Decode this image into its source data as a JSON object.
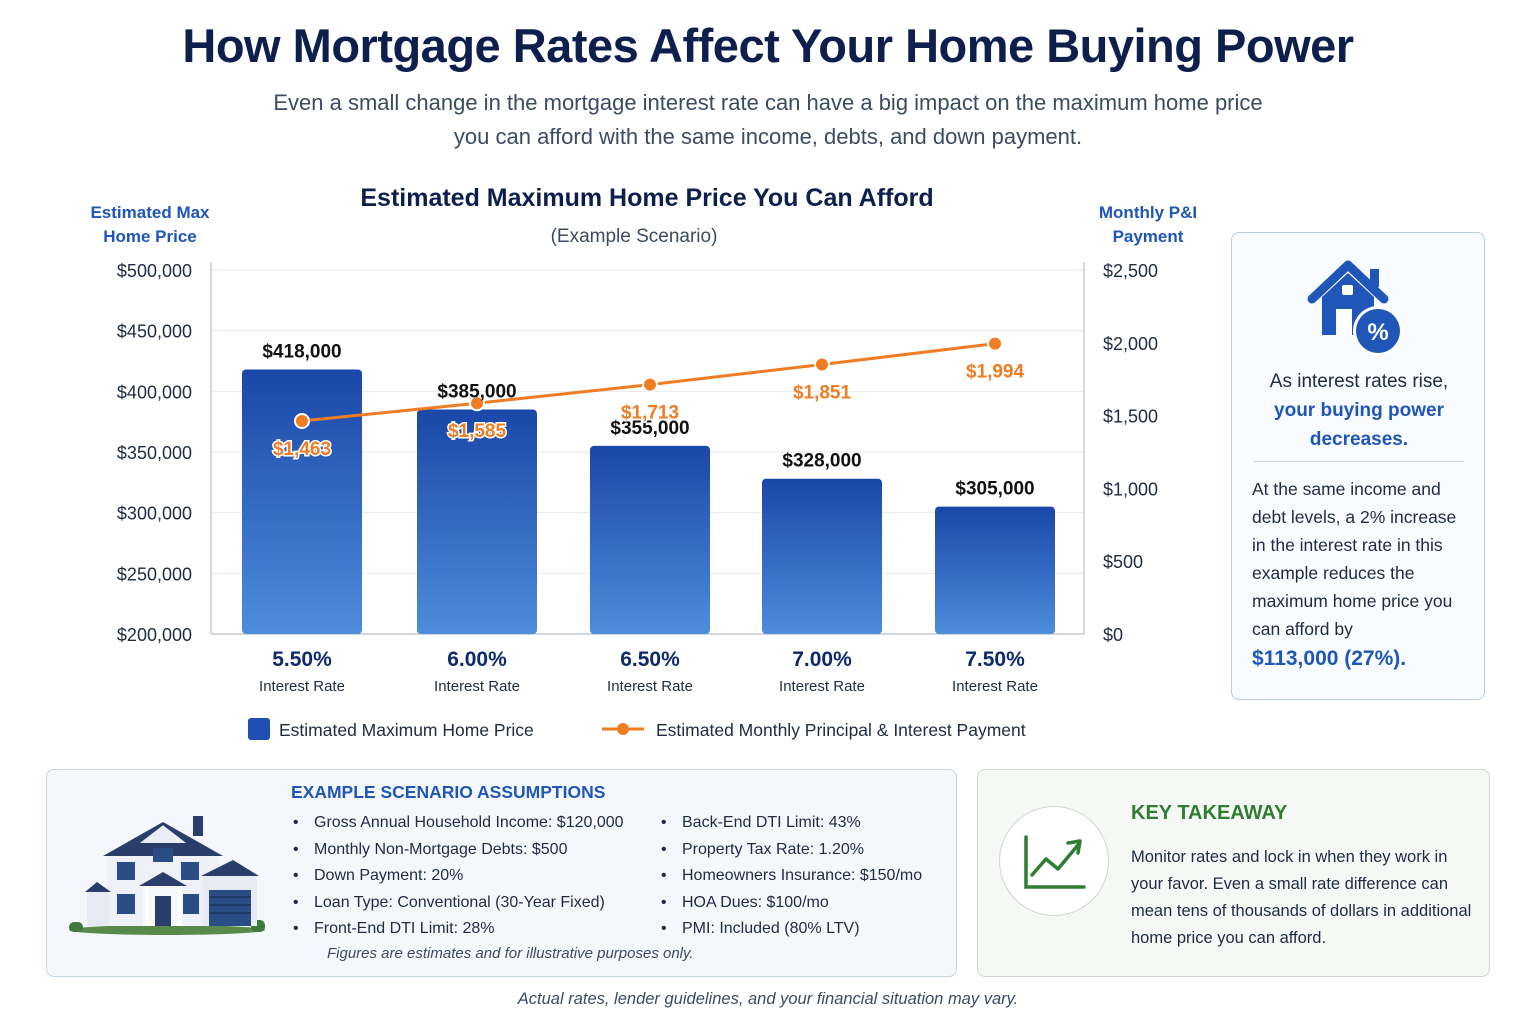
{
  "header": {
    "title": "How Mortgage Rates Affect Your Home Buying Power",
    "subtitle_line1": "Even a small change in the mortgage interest rate can have a big impact on the maximum home price",
    "subtitle_line2": "you can afford with the same income, debts, and down payment."
  },
  "chart_data": {
    "type": "bar",
    "title": "Estimated Maximum Home Price You Can Afford",
    "subtitle": "(Example Scenario)",
    "ylabel_left": [
      "Estimated Max",
      "Home Price"
    ],
    "ylabel_right": [
      "Monthly P&I",
      "Payment"
    ],
    "categories": [
      "5.50%",
      "6.00%",
      "6.50%",
      "7.00%",
      "7.50%"
    ],
    "category_sublabel": "Interest Rate",
    "ylim_left": [
      200000,
      500000
    ],
    "ylim_right": [
      0,
      2500
    ],
    "yticks_left": [
      "$500,000",
      "$450,000",
      "$400,000",
      "$350,000",
      "$300,000",
      "$250,000",
      "$200,000"
    ],
    "yticks_right": [
      "$2,500",
      "$2,000",
      "$1,500",
      "$1,000",
      "$500",
      "$0"
    ],
    "grid": true,
    "legend_placement": "bottom",
    "series": [
      {
        "name": "Estimated Maximum Home Price",
        "type": "bar",
        "axis": "left",
        "values": [
          418000,
          385000,
          355000,
          328000,
          305000
        ],
        "labels": [
          "$418,000",
          "$385,000",
          "$355,000",
          "$328,000",
          "$305,000"
        ],
        "color": "#1f4fb0"
      },
      {
        "name": "Estimated Monthly Principal & Interest Payment",
        "type": "line",
        "axis": "right",
        "values": [
          1463,
          1585,
          1713,
          1851,
          1994
        ],
        "labels": [
          "$1,463",
          "$1,585",
          "$1,713",
          "$1,851",
          "$1,994"
        ],
        "color": "#f07c24"
      }
    ]
  },
  "side_card": {
    "icon": "house-percent-icon",
    "line1": "As interest rates rise,",
    "line2": "your buying power",
    "line3": "decreases.",
    "body": "At the same income and debt levels, a 2% increase in the interest rate in this example reduces the maximum home price you can afford by",
    "stat": "$113,000 (27%)."
  },
  "assumptions": {
    "heading": "EXAMPLE SCENARIO ASSUMPTIONS",
    "col1": [
      "Gross Annual Household Income: $120,000",
      "Monthly Non-Mortgage Debts: $500",
      "Down Payment: 20%",
      "Loan Type: Conventional (30-Year Fixed)",
      "Front-End DTI Limit: 28%"
    ],
    "col2": [
      "Back-End DTI Limit: 43%",
      "Property Tax Rate: 1.20%",
      "Homeowners Insurance: $150/mo",
      "HOA Dues: $100/mo",
      "PMI: Included (80% LTV)"
    ],
    "note": "Figures are estimates and for illustrative purposes only."
  },
  "takeaway": {
    "icon": "trend-up-chart-icon",
    "heading": "KEY TAKEAWAY",
    "text": "Monitor rates and lock in when they work in your favor. Even a small rate difference can mean tens of thousands of dollars in additional home price you can afford."
  },
  "footer": {
    "text": "Actual rates, lender guidelines, and your financial situation may vary."
  },
  "colors": {
    "title": "#0f1f4d",
    "accent_blue": "#1f56b8",
    "bar_top": "#1a47a8",
    "bar_bottom": "#4d8ddb",
    "line_orange": "#f07c24",
    "takeaway_green": "#2e7d32"
  }
}
